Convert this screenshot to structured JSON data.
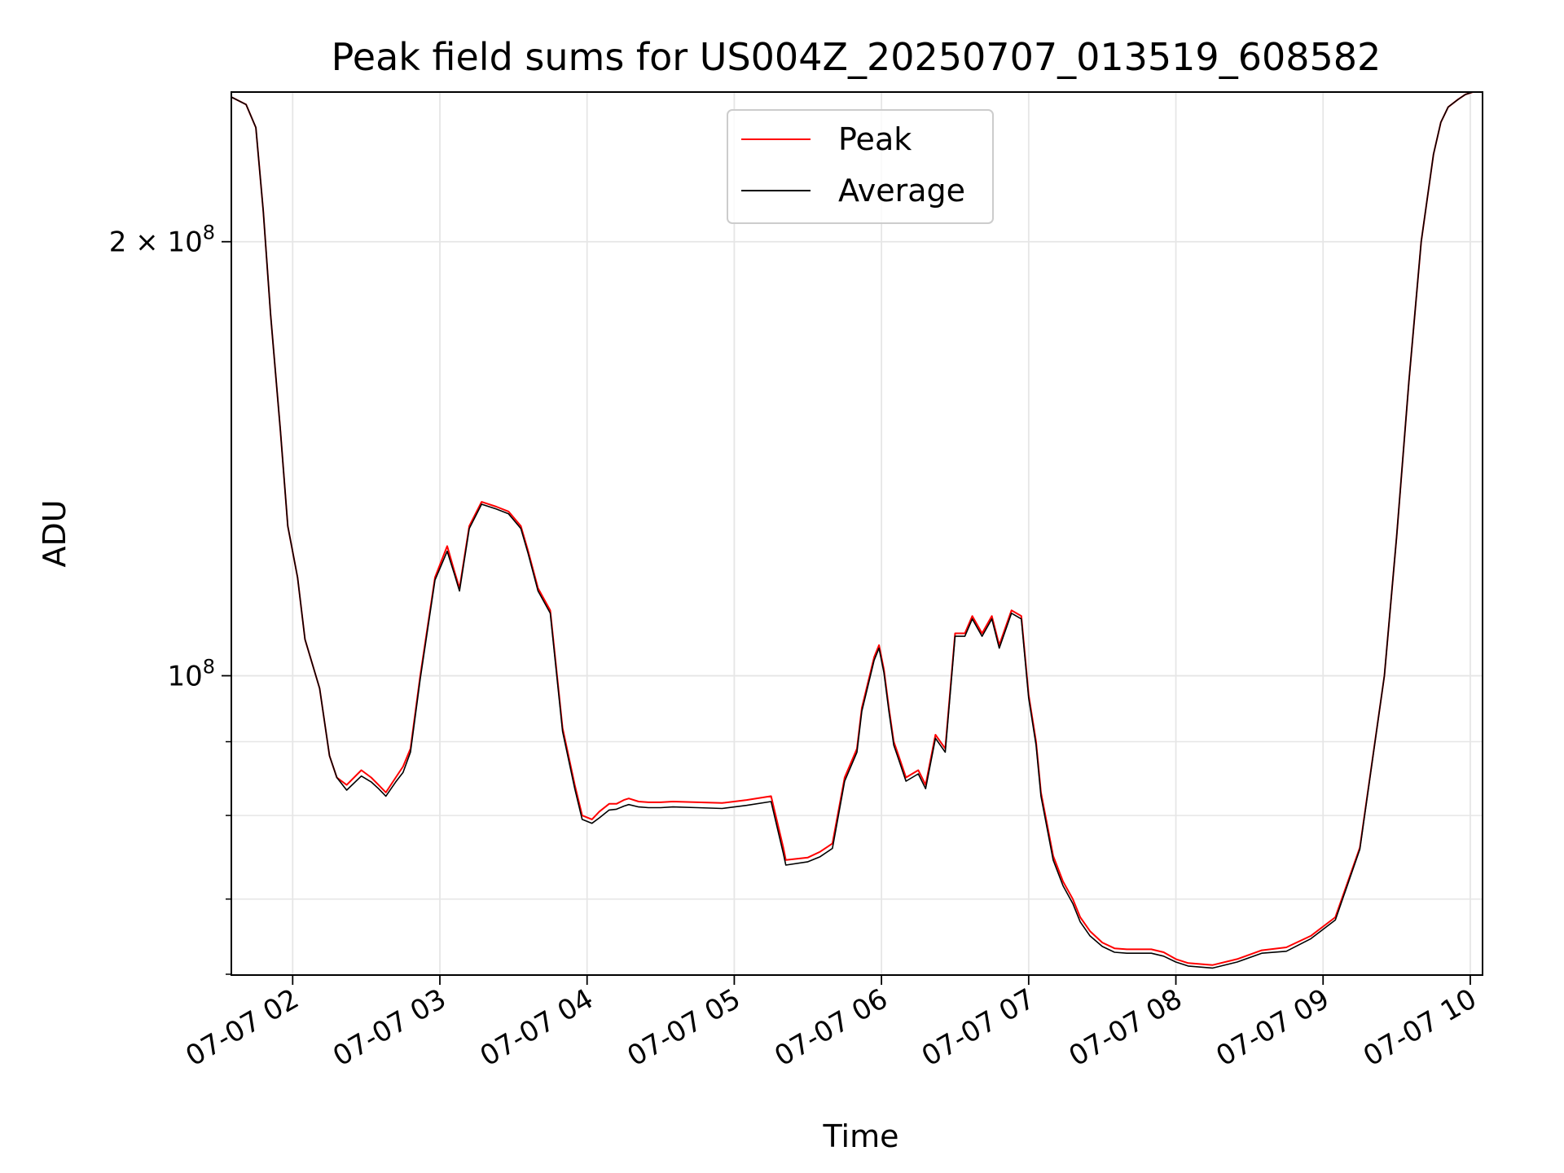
{
  "chart_data": {
    "type": "line",
    "title": "Peak field sums for US004Z_20250707_013519_608582",
    "xlabel": "Time",
    "ylabel": "ADU",
    "x_range": [
      "07-07 01:35",
      "07-07 10:05"
    ],
    "y_scale": "log",
    "y_range": [
      62000000,
      254000000
    ],
    "grid": true,
    "legend_position": "upper-center",
    "x_ticks": [
      "07-07 02",
      "07-07 03",
      "07-07 04",
      "07-07 05",
      "07-07 06",
      "07-07 07",
      "07-07 08",
      "07-07 09",
      "07-07 10"
    ],
    "y_major_ticks": [
      {
        "value": 100000000,
        "mantissa": "",
        "exponent": "8"
      },
      {
        "value": 200000000,
        "mantissa": "2",
        "exponent": "8"
      }
    ],
    "y_minor_ticks": [
      70000000,
      80000000,
      90000000
    ],
    "x_minutes": [
      0,
      6,
      10,
      13,
      16,
      20,
      23,
      27,
      30,
      36,
      40,
      43,
      47,
      53,
      57,
      60,
      63,
      67,
      70,
      73,
      77,
      83,
      88,
      91,
      93,
      97,
      102,
      108,
      113,
      118,
      121,
      125,
      130,
      135,
      140,
      143,
      147,
      150,
      154,
      157,
      160,
      162,
      166,
      170,
      175,
      180,
      190,
      200,
      210,
      220,
      225,
      226,
      235,
      240,
      245,
      250,
      255,
      257,
      262,
      264,
      266,
      268,
      270,
      272,
      275,
      280,
      283,
      287,
      291,
      295,
      299,
      302,
      306,
      310,
      313,
      318,
      322,
      325,
      328,
      330,
      335,
      339,
      343,
      346,
      350,
      355,
      360,
      365,
      370,
      375,
      380,
      385,
      390,
      400,
      410,
      420,
      430,
      440,
      450,
      460,
      470,
      475,
      480,
      485,
      490,
      493,
      496,
      500,
      503,
      506,
      510
    ],
    "series": [
      {
        "name": "Peak",
        "color": "#ff0000",
        "values": [
          252000000,
          249000000,
          240000000,
          210000000,
          178000000,
          148000000,
          127000000,
          117000000,
          106000000,
          98000000,
          88000000,
          85000000,
          84000000,
          86000000,
          85000000,
          84000000,
          83000000,
          85000000,
          86500000,
          89000000,
          100000000,
          117000000,
          123000000,
          118000000,
          115000000,
          127000000,
          132000000,
          131000000,
          130000000,
          127000000,
          122000000,
          115000000,
          111000000,
          92000000,
          84000000,
          80000000,
          79500000,
          80500000,
          81500000,
          81500000,
          82000000,
          82200000,
          81800000,
          81700000,
          81700000,
          81800000,
          81700000,
          81600000,
          82000000,
          82500000,
          76000000,
          74500000,
          74800000,
          75500000,
          76500000,
          85000000,
          89000000,
          95000000,
          103000000,
          105000000,
          101000000,
          95000000,
          90000000,
          88000000,
          85000000,
          86000000,
          84000000,
          91000000,
          89000000,
          107000000,
          107000000,
          110000000,
          107000000,
          110000000,
          105000000,
          111000000,
          110000000,
          97000000,
          90000000,
          83000000,
          75000000,
          72000000,
          70000000,
          68000000,
          66500000,
          65300000,
          64700000,
          64600000,
          64600000,
          64600000,
          64300000,
          63600000,
          63200000,
          63000000,
          63600000,
          64500000,
          64800000,
          66000000,
          68000000,
          76000000,
          100000000,
          125000000,
          160000000,
          200000000,
          230000000,
          242000000,
          248000000,
          251000000,
          253000000,
          254000000,
          254000000
        ]
      },
      {
        "name": "Average",
        "color": "#000000",
        "values": [
          252000000,
          249000000,
          240000000,
          210000000,
          178000000,
          148000000,
          127000000,
          117000000,
          106000000,
          98000000,
          88000000,
          85000000,
          83300000,
          85200000,
          84400000,
          83500000,
          82500000,
          84400000,
          85700000,
          88500000,
          99500000,
          116500000,
          122000000,
          117500000,
          114500000,
          126500000,
          131500000,
          130500000,
          129500000,
          126500000,
          121500000,
          114500000,
          110500000,
          91500000,
          83500000,
          79500000,
          79000000,
          79700000,
          80700000,
          80800000,
          81200000,
          81400000,
          81100000,
          81000000,
          81000000,
          81100000,
          81000000,
          80900000,
          81300000,
          81800000,
          75300000,
          73900000,
          74300000,
          74900000,
          75900000,
          84500000,
          88500000,
          94500000,
          102500000,
          104500000,
          100500000,
          94500000,
          89500000,
          87500000,
          84500000,
          85500000,
          83500000,
          90500000,
          88500000,
          106500000,
          106500000,
          109500000,
          106500000,
          109500000,
          104500000,
          110500000,
          109500000,
          96500000,
          89500000,
          82500000,
          74500000,
          71500000,
          69500000,
          67500000,
          66000000,
          64900000,
          64300000,
          64200000,
          64200000,
          64200000,
          63900000,
          63300000,
          62900000,
          62700000,
          63300000,
          64200000,
          64400000,
          65700000,
          67700000,
          75800000,
          100000000,
          125000000,
          160000000,
          200000000,
          230000000,
          242000000,
          248000000,
          251000000,
          253000000,
          254000000,
          254000000
        ]
      }
    ]
  }
}
